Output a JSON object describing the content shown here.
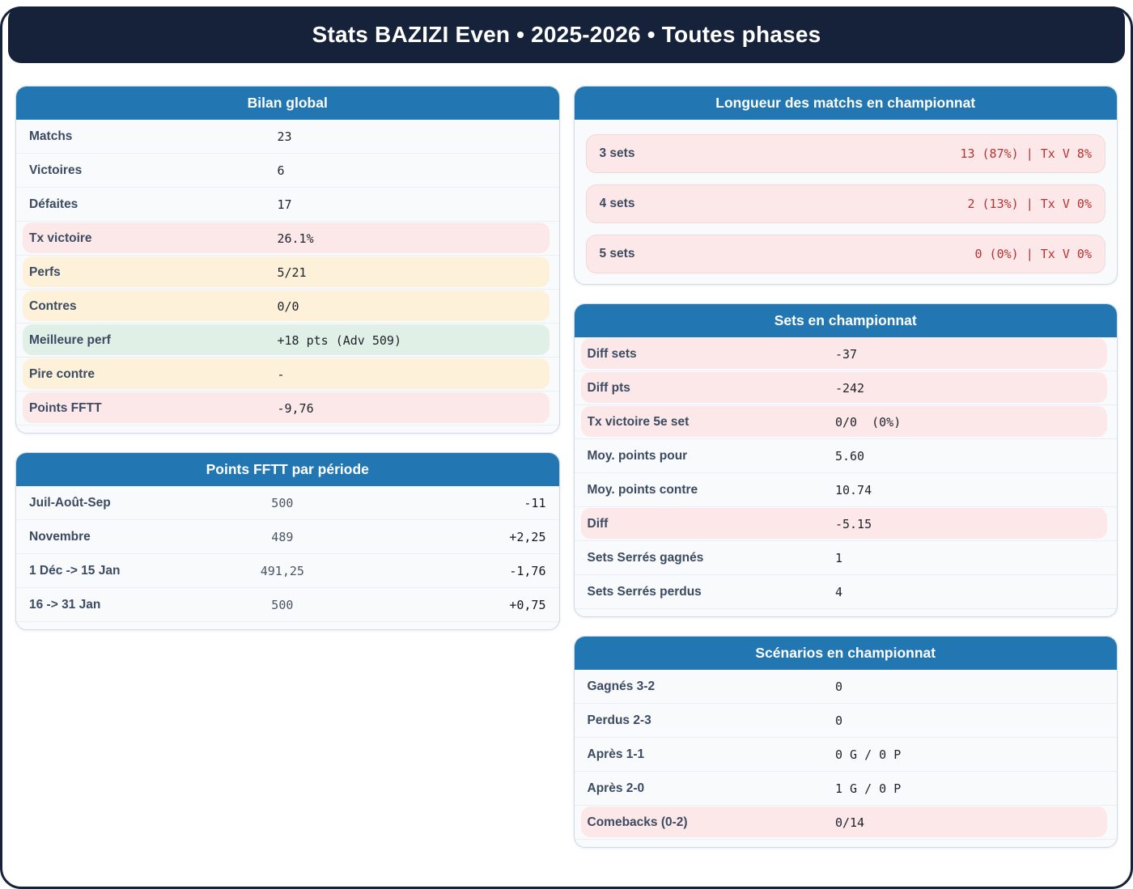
{
  "header": {
    "title": "Stats BAZIZI Even • 2025-2026 • Toutes phases"
  },
  "colors": {
    "banner_navy": "#16213a",
    "card_header_blue": "#2277b3",
    "highlight_pink": "#fce8e8",
    "highlight_cream": "#fdf1da",
    "highlight_green": "#e0f0e7",
    "pill_value_red": "#b73232"
  },
  "cards": {
    "bilan": {
      "title": "Bilan global",
      "rows": [
        {
          "label": "Matchs",
          "value": "23"
        },
        {
          "label": "Victoires",
          "value": "6"
        },
        {
          "label": "Défaites",
          "value": "17"
        },
        {
          "label": "Tx victoire",
          "value": "26.1%"
        },
        {
          "label": "Perfs",
          "value": "5/21"
        },
        {
          "label": "Contres",
          "value": "0/0"
        },
        {
          "label": "Meilleure perf",
          "value": "+18 pts (Adv 509)"
        },
        {
          "label": "Pire contre",
          "value": "-"
        },
        {
          "label": "Points FFTT",
          "value": "-9,76"
        }
      ]
    },
    "periode": {
      "title": "Points FFTT par période",
      "rows": [
        {
          "label": "Juil-Août-Sep",
          "points": "500",
          "delta": "-11"
        },
        {
          "label": "Novembre",
          "points": "489",
          "delta": "+2,25"
        },
        {
          "label": "1 Déc -> 15 Jan",
          "points": "491,25",
          "delta": "-1,76"
        },
        {
          "label": "16 -> 31 Jan",
          "points": "500",
          "delta": "+0,75"
        }
      ]
    },
    "longueur": {
      "title": "Longueur des matchs en championnat",
      "rows": [
        {
          "label": "3 sets",
          "value": "13 (87%) | Tx V 8%"
        },
        {
          "label": "4 sets",
          "value": "2 (13%) | Tx V 0%"
        },
        {
          "label": "5 sets",
          "value": "0 (0%) | Tx V 0%"
        }
      ]
    },
    "sets": {
      "title": "Sets en championnat",
      "rows": [
        {
          "label": "Diff sets",
          "value": "-37"
        },
        {
          "label": "Diff pts",
          "value": "-242"
        },
        {
          "label": "Tx victoire 5e set",
          "value": "0/0  (0%)"
        },
        {
          "label": "Moy. points pour",
          "value": "5.60"
        },
        {
          "label": "Moy. points contre",
          "value": "10.74"
        },
        {
          "label": "Diff",
          "value": "-5.15"
        },
        {
          "label": "Sets Serrés gagnés",
          "value": "1"
        },
        {
          "label": "Sets Serrés perdus",
          "value": "4"
        }
      ]
    },
    "scenarios": {
      "title": "Scénarios en championnat",
      "rows": [
        {
          "label": "Gagnés 3-2",
          "value": "0"
        },
        {
          "label": "Perdus 2-3",
          "value": "0"
        },
        {
          "label": "Après 1-1",
          "value": "0 G / 0 P"
        },
        {
          "label": "Après 2-0",
          "value": "1 G / 0 P"
        },
        {
          "label": "Comebacks (0-2)",
          "value": "0/14"
        }
      ]
    }
  }
}
